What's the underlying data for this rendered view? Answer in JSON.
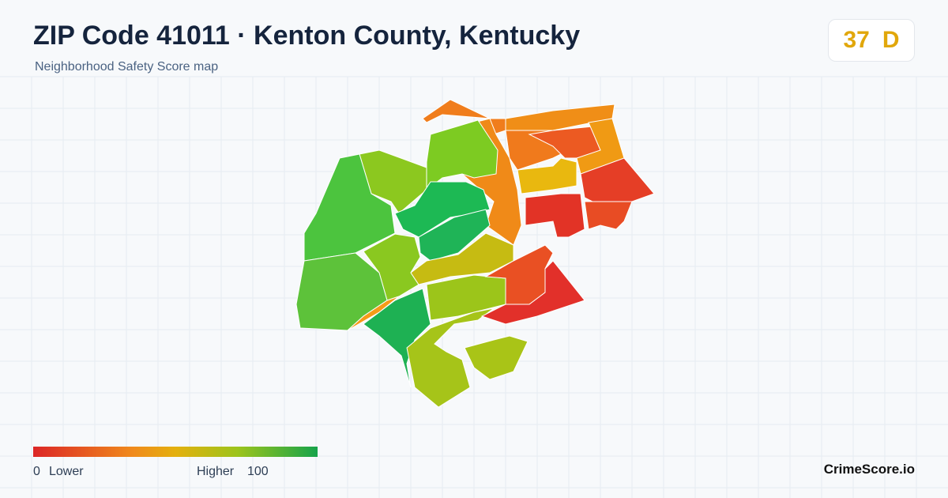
{
  "header": {
    "title": "ZIP Code 41011 · Kenton County, Kentucky",
    "subtitle": "Neighborhood Safety Score map"
  },
  "score": {
    "value": 37,
    "grade": "D"
  },
  "legend": {
    "min": 0,
    "min_label": "Lower",
    "max_label": "Higher",
    "max": 100
  },
  "brand": "CrimeScore.io"
}
